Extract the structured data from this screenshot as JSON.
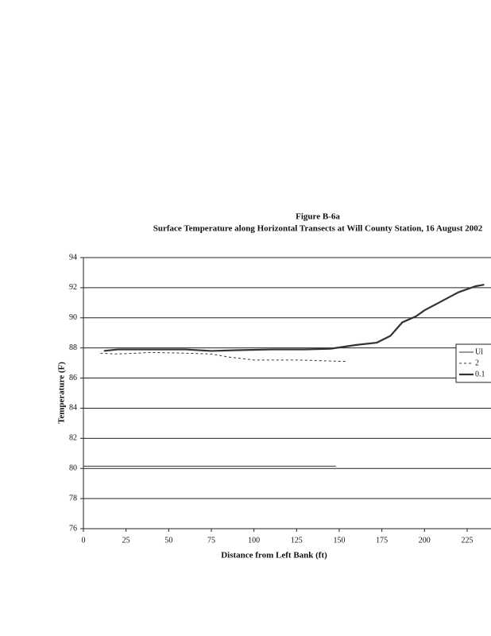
{
  "chart_data": {
    "type": "line",
    "title": "Figure B-6a",
    "subtitle": "Surface Temperature along Horizontal Transects at Will County Station, 16 August 2002",
    "xlabel": "Distance from Left Bank (ft)",
    "ylabel": "Temperature (F)",
    "xlim": [
      0,
      239
    ],
    "xticks": [
      0,
      25,
      50,
      75,
      100,
      125,
      150,
      175,
      200,
      225
    ],
    "ylim": [
      76,
      94
    ],
    "yticks": [
      76,
      78,
      80,
      82,
      84,
      86,
      88,
      90,
      92,
      94
    ],
    "grid": true,
    "legend": "right",
    "series": [
      {
        "name": "Ul",
        "color": "#333333",
        "style": "solid",
        "width": 1,
        "x": [
          0,
          148
        ],
        "values": [
          80.15,
          80.15
        ]
      },
      {
        "name": "2",
        "color": "#333333",
        "style": "dashed",
        "width": 1,
        "x": [
          10,
          20,
          40,
          60,
          75,
          85,
          100,
          125,
          140,
          155
        ],
        "values": [
          87.65,
          87.6,
          87.7,
          87.65,
          87.6,
          87.4,
          87.2,
          87.2,
          87.15,
          87.1
        ]
      },
      {
        "name": "0.1",
        "color": "#333333",
        "style": "solid",
        "width": 2.2,
        "x": [
          12,
          20,
          40,
          60,
          75,
          90,
          110,
          130,
          145,
          160,
          172,
          180,
          187,
          195,
          200,
          210,
          220,
          230,
          235
        ],
        "values": [
          87.8,
          87.9,
          87.9,
          87.9,
          87.8,
          87.85,
          87.9,
          87.9,
          87.95,
          88.2,
          88.35,
          88.8,
          89.7,
          90.1,
          90.5,
          91.1,
          91.7,
          92.1,
          92.2
        ]
      }
    ]
  }
}
